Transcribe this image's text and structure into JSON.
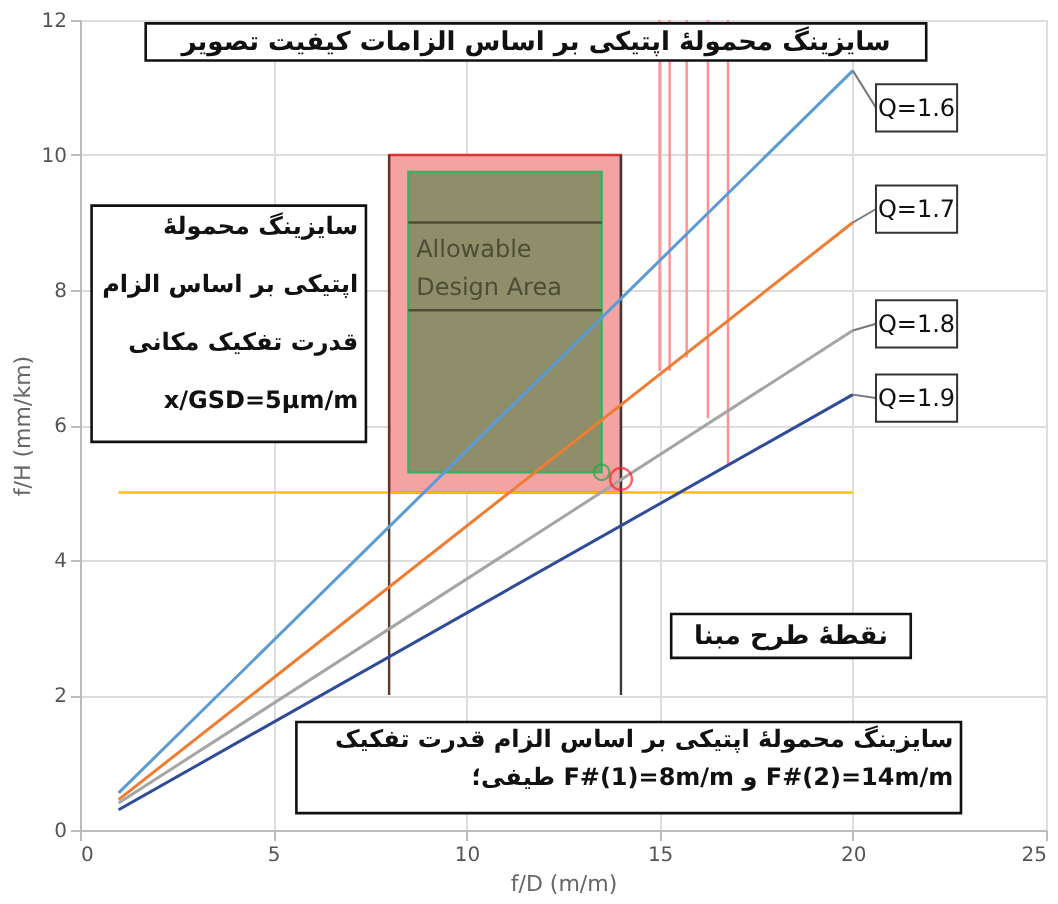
{
  "chart_data": {
    "type": "line",
    "xlabel": "f/D (m/m)",
    "ylabel": "f/H (mm/km)",
    "xlim": [
      0,
      25
    ],
    "ylim": [
      0,
      12
    ],
    "xticks": [
      0,
      5,
      10,
      15,
      20,
      25
    ],
    "yticks": [
      0,
      2,
      4,
      6,
      8,
      10,
      12
    ],
    "grid": true,
    "legend": false,
    "series": [
      {
        "type": "bar",
        "color": "#f4a3a3",
        "x": [
          11
        ],
        "base": [
          5
        ],
        "values": [
          5
        ]
      },
      {
        "type": "bar",
        "color": "#8e8e6a",
        "x": [
          11
        ],
        "base": [
          5.3
        ],
        "values": [
          4.45
        ]
      },
      {
        "color": "#4d4d35",
        "x": [
          8.5,
          13.5
        ],
        "values": [
          9.0,
          9.0
        ]
      },
      {
        "color": "#4d4d35",
        "x": [
          8.5,
          13.5
        ],
        "values": [
          7.7,
          7.7
        ]
      },
      {
        "color": "#ff9090",
        "x": [
          15.0,
          15.0
        ],
        "values": [
          6.8,
          12
        ]
      },
      {
        "color": "#ff9090",
        "x": [
          15.26,
          15.26
        ],
        "values": [
          6.8,
          12
        ]
      },
      {
        "color": "#ff9090",
        "x": [
          15.7,
          15.7
        ],
        "values": [
          7.0,
          12
        ]
      },
      {
        "color": "#ff9090",
        "x": [
          16.25,
          16.25
        ],
        "values": [
          6.1,
          12
        ]
      },
      {
        "color": "#ff9090",
        "x": [
          16.77,
          16.77
        ],
        "values": [
          5.4,
          12
        ]
      },
      {
        "color": "#ffc000",
        "x": [
          1,
          20
        ],
        "values": [
          5,
          5
        ]
      },
      {
        "color": "#5a3a2a",
        "x": [
          8,
          8
        ],
        "values": [
          2,
          10
        ]
      },
      {
        "color": "#3a3a3a",
        "x": [
          14,
          14
        ],
        "values": [
          2,
          10
        ]
      },
      {
        "name": "Q=1.6",
        "color": "#5b9bd5",
        "x": [
          1,
          20
        ],
        "values": [
          0.55,
          11.25
        ]
      },
      {
        "name": "Q=1.7",
        "color": "#ed7d31",
        "x": [
          1,
          20
        ],
        "values": [
          0.45,
          9.0
        ]
      },
      {
        "name": "Q=1.8",
        "color": "#a5a5a5",
        "x": [
          1,
          20
        ],
        "values": [
          0.4,
          7.4
        ]
      },
      {
        "name": "Q=1.9",
        "color": "#2f4b9a",
        "x": [
          1,
          20
        ],
        "values": [
          0.3,
          6.45
        ]
      },
      {
        "type": "scatter",
        "marker": "circle",
        "color": "#22aa44",
        "x": [
          13.5
        ],
        "values": [
          5.3
        ]
      },
      {
        "type": "scatter",
        "marker": "circle",
        "color": "#ff2020",
        "x": [
          14
        ],
        "values": [
          5.2
        ]
      }
    ],
    "annotations": [
      "سایزینگ محمولهٔ اپتیکی بر اساس الزامات کیفیت تصویر",
      "سایزینگ محمولهٔ\nاپتیکی بر اساس الزام\nقدرت تفکیک مکانی\nx/GSD=5µm/m",
      "نقطهٔ طرح مبنا",
      "سایزینگ محمولهٔ اپتیکی بر اساس الزام قدرت تفکیک\nطیفی؛ F#(1)=8m/m و F#(2)=14m/m",
      "Allowable\nDesign Area"
    ]
  }
}
